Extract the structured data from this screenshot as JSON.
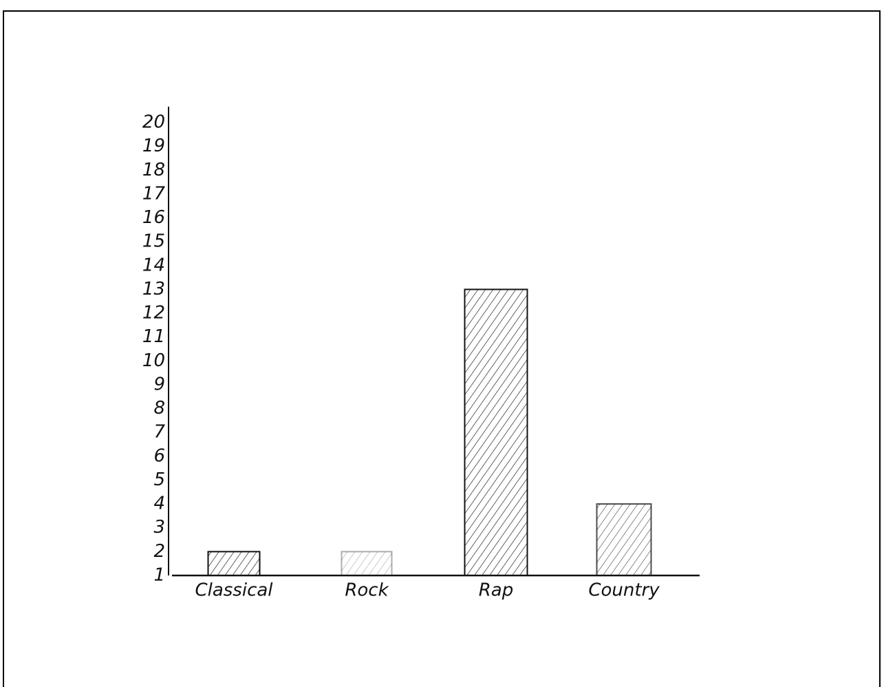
{
  "chart_data": {
    "type": "bar",
    "categories": [
      "Classical",
      "Rock",
      "Rap",
      "Country"
    ],
    "values": [
      2,
      2,
      13,
      4
    ],
    "color": "#111111",
    "ylim": [
      1,
      20
    ],
    "yticks": [
      1,
      2,
      3,
      4,
      5,
      6,
      7,
      8,
      9,
      10,
      11,
      12,
      13,
      14,
      15,
      16,
      17,
      18,
      19,
      20
    ],
    "grid": false
  }
}
